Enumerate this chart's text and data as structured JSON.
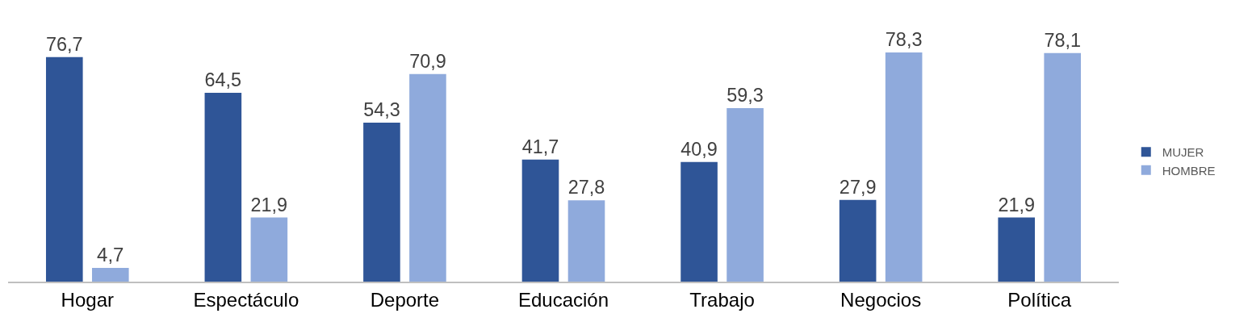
{
  "chart_data": {
    "type": "bar",
    "categories": [
      "Hogar",
      "Espectáculo",
      "Deporte",
      "Educación",
      "Trabajo",
      "Negocios",
      "Política"
    ],
    "series": [
      {
        "name": "MUJER",
        "color": "#2f5597",
        "values": [
          76.7,
          64.5,
          54.3,
          41.7,
          40.9,
          27.9,
          21.9
        ],
        "value_labels": [
          "76,7",
          "64,5",
          "54,3",
          "41,7",
          "40,9",
          "27,9",
          "21,9"
        ]
      },
      {
        "name": "HOMBRE",
        "color": "#8faadc",
        "values": [
          4.7,
          21.9,
          70.9,
          27.8,
          59.3,
          78.3,
          78.1
        ],
        "value_labels": [
          "4,7",
          "21,9",
          "70,9",
          "27,8",
          "59,3",
          "78,3",
          "78,1"
        ]
      }
    ],
    "grid": false,
    "legend": "right"
  }
}
